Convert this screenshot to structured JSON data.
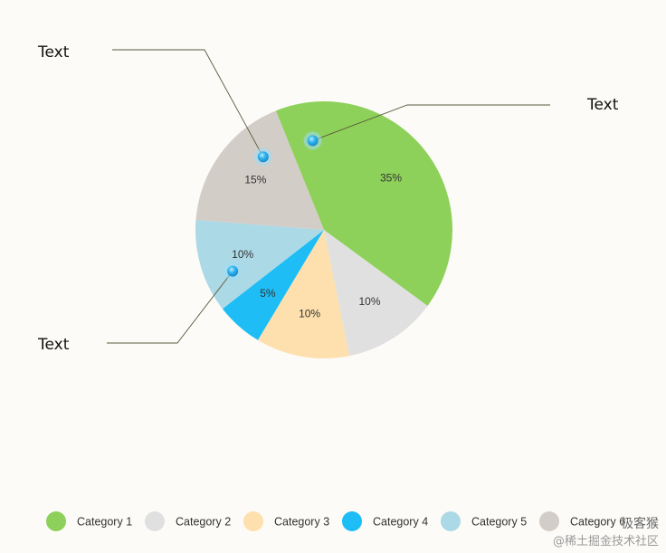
{
  "chart_data": {
    "type": "pie",
    "categories": [
      "Category 1",
      "Category 2",
      "Category 3",
      "Category 4",
      "Category 5",
      "Category 6"
    ],
    "values": [
      35,
      10,
      10,
      5,
      10,
      15
    ],
    "labels": [
      "35%",
      "10%",
      "10%",
      "5%",
      "10%",
      "15%"
    ],
    "colors": [
      "#8ed15a",
      "#e0e0e0",
      "#fde0ad",
      "#1ebdf5",
      "#acd9e6",
      "#d3cdc8"
    ],
    "legend_position": "bottom",
    "title": "",
    "annotations": [
      {
        "text": "Text",
        "slice": "Category 6"
      },
      {
        "text": "Text",
        "slice": "Category 1"
      },
      {
        "text": "Text",
        "slice": "Category 5"
      }
    ]
  },
  "watermark": {
    "line1": "极客猴",
    "line2": "@稀土掘金技术社区"
  }
}
